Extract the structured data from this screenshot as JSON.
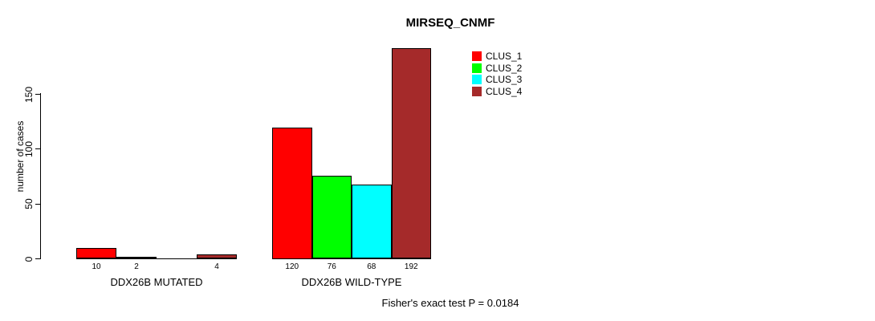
{
  "chart_data": {
    "type": "bar",
    "title": "MIRSEQ_CNMF",
    "ylabel": "number of cases",
    "xlabel": "",
    "ylim": [
      0,
      192
    ],
    "yticks": [
      0,
      50,
      100,
      150
    ],
    "grid": false,
    "legend_position": "top-right",
    "legend": [
      {
        "label": "CLUS_1",
        "color": "#ff0000"
      },
      {
        "label": "CLUS_2",
        "color": "#00ff00"
      },
      {
        "label": "CLUS_3",
        "color": "#00ffff"
      },
      {
        "label": "CLUS_4",
        "color": "#a52a2a"
      }
    ],
    "categories": [
      "DDX26B MUTATED",
      "DDX26B WILD-TYPE"
    ],
    "series": [
      {
        "name": "CLUS_1",
        "color": "#ff0000",
        "values": [
          10,
          120
        ]
      },
      {
        "name": "CLUS_2",
        "color": "#00ff00",
        "values": [
          2,
          76
        ]
      },
      {
        "name": "CLUS_3",
        "color": "#00ffff",
        "values": [
          0,
          68
        ]
      },
      {
        "name": "CLUS_4",
        "color": "#a52a2a",
        "values": [
          4,
          192
        ]
      }
    ],
    "bar_value_labels": [
      [
        "10",
        "2",
        "",
        "4"
      ],
      [
        "120",
        "76",
        "68",
        "192"
      ]
    ],
    "annotation": "Fisher's exact test P = 0.0184"
  }
}
